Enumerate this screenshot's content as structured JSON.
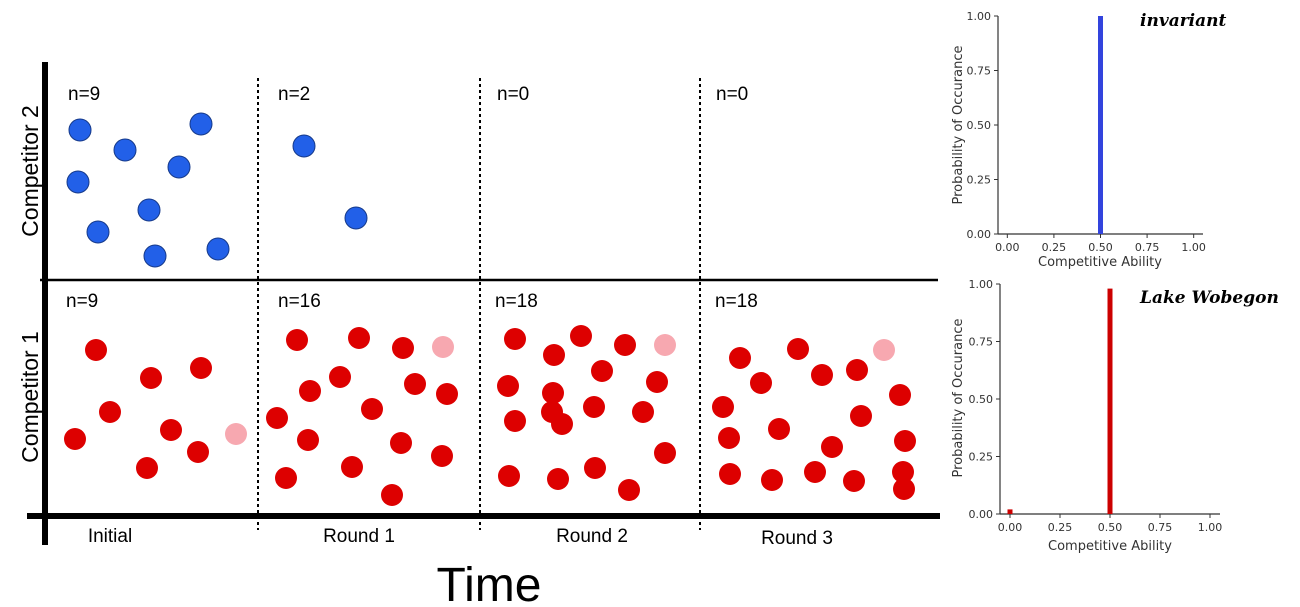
{
  "diagram": {
    "rows": [
      {
        "label": "Competitor 2",
        "color": "#2260e8"
      },
      {
        "label": "Competitor 1",
        "color": "#dd0000",
        "mutant_color": "#f7a8b0"
      }
    ],
    "time_label": "Time",
    "columns": [
      {
        "label": "Initial",
        "top_count": "n=9",
        "bottom_count": "n=9"
      },
      {
        "label": "Round 1",
        "top_count": "n=2",
        "bottom_count": "n=16"
      },
      {
        "label": "Round 2",
        "top_count": "n=0",
        "bottom_count": "n=18"
      },
      {
        "label": "Round 3",
        "top_count": "n=0",
        "bottom_count": "n=18"
      }
    ]
  },
  "chart_data": [
    {
      "type": "bar",
      "title": "invariant",
      "xlabel": "Competitive Ability",
      "ylabel": "Probability of Occurance",
      "xlim": [
        -0.05,
        1.05
      ],
      "ylim": [
        0,
        1
      ],
      "xticks": [
        "0.00",
        "0.25",
        "0.50",
        "0.75",
        "1.00"
      ],
      "yticks": [
        "0.00",
        "0.25",
        "0.50",
        "0.75",
        "1.00"
      ],
      "color": "#3344dd",
      "x": [
        0.5
      ],
      "values": [
        1.0
      ]
    },
    {
      "type": "bar",
      "title": "Lake Wobegon",
      "xlabel": "Competitive Ability",
      "ylabel": "Probability of Occurance",
      "xlim": [
        -0.05,
        1.05
      ],
      "ylim": [
        0,
        1
      ],
      "xticks": [
        "0.00",
        "0.25",
        "0.50",
        "0.75",
        "1.00"
      ],
      "yticks": [
        "0.00",
        "0.25",
        "0.50",
        "0.75",
        "1.00"
      ],
      "color": "#cc0000",
      "x": [
        0.0,
        0.5
      ],
      "values": [
        0.02,
        0.98
      ]
    }
  ]
}
